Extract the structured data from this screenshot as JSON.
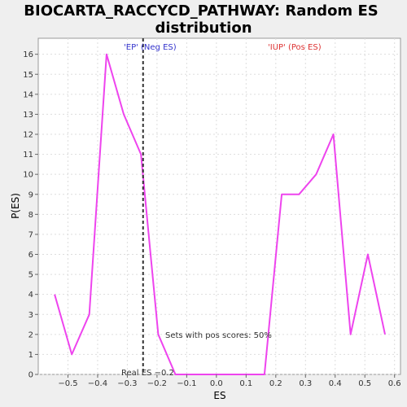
{
  "chart_data": {
    "type": "line",
    "title_line1": "BIOCARTA_RACCYCD_PATHWAY: Random ES",
    "title_line2": "distribution",
    "xlabel": "ES",
    "ylabel": "P(ES)",
    "xlim": [
      -0.6,
      0.62
    ],
    "ylim": [
      0,
      16.8
    ],
    "xticks": [
      -0.5,
      -0.4,
      -0.3,
      -0.2,
      -0.1,
      0.0,
      0.1,
      0.2,
      0.3,
      0.4,
      0.5,
      0.6
    ],
    "xtick_labels": [
      "−0.5",
      "−0.4",
      "−0.3",
      "−0.2",
      "−0.1",
      "0.0",
      "0.1",
      "0.2",
      "0.3",
      "0.4",
      "0.5",
      "0.6"
    ],
    "yticks": [
      0,
      1,
      2,
      3,
      4,
      5,
      6,
      7,
      8,
      9,
      10,
      11,
      12,
      13,
      14,
      15,
      16
    ],
    "grid": true,
    "series": [
      {
        "color": "#ee44ee",
        "x": [
          -0.545,
          -0.487,
          -0.428,
          -0.37,
          -0.312,
          -0.254,
          -0.196,
          -0.138,
          -0.08,
          -0.022,
          0.036,
          0.104,
          0.162,
          0.22,
          0.278,
          0.336,
          0.394,
          0.452,
          0.51,
          0.568
        ],
        "y": [
          4,
          1,
          3,
          16,
          13,
          11,
          2,
          0,
          0,
          0,
          0,
          0,
          0,
          9,
          9,
          10,
          12,
          2,
          6,
          2
        ]
      }
    ],
    "real_es": -0.247,
    "annotations": {
      "neg_label": "'EP' (Neg ES)",
      "pos_label": "'IUP' (Pos ES)",
      "pos_scores": "Sets with pos scores: 50%",
      "real_es_label": "Real ES −0.2"
    },
    "colors": {
      "line": "#ee44ee",
      "neg_label": "#3333cc",
      "pos_label": "#dd3333",
      "real_es_line": "#333333",
      "plot_bg": "#ffffff",
      "page_bg": "#efefef"
    }
  }
}
